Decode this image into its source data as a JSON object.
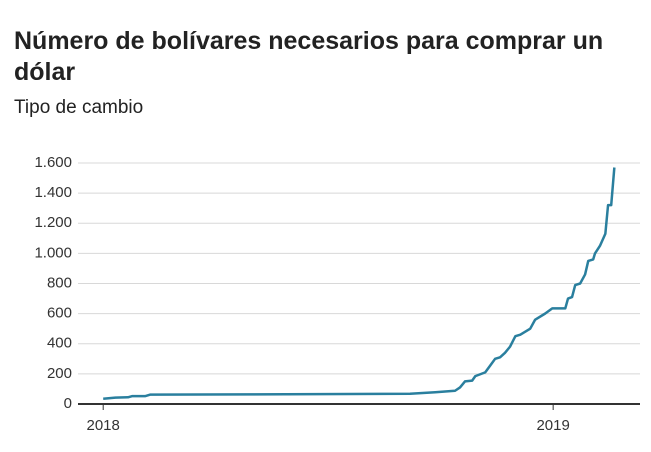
{
  "chart_data": {
    "type": "line",
    "title": "Número de bolívares necesarios para comprar un dólar",
    "subtitle": "Tipo de cambio",
    "x": [
      2018.0,
      2018.027,
      2018.056,
      2018.064,
      2018.093,
      2018.104,
      2018.327,
      2018.549,
      2018.682,
      2018.738,
      2018.782,
      2018.793,
      2018.804,
      2018.82,
      2018.827,
      2018.849,
      2018.86,
      2018.871,
      2018.882,
      2018.893,
      2018.904,
      2018.916,
      2018.927,
      2018.949,
      2018.96,
      2018.982,
      2018.998,
      2019.027,
      2019.033,
      2019.042,
      2019.049,
      2019.06,
      2019.071,
      2019.078,
      2019.089,
      2019.093,
      2019.104,
      2019.116,
      2019.122,
      2019.129,
      2019.136
    ],
    "series": [
      {
        "name": "Tipo de cambio",
        "color": "#2a7f9e",
        "values": [
          35,
          42,
          45,
          52,
          52,
          62,
          64,
          66,
          68,
          78,
          88,
          110,
          150,
          155,
          185,
          210,
          255,
          300,
          310,
          340,
          380,
          450,
          460,
          500,
          560,
          600,
          635,
          635,
          700,
          710,
          790,
          800,
          860,
          950,
          960,
          1000,
          1050,
          1130,
          1320,
          1320,
          1570
        ]
      }
    ],
    "xlim": [
      2017.944,
      2019.193
    ],
    "xticks": [
      2018,
      2019
    ],
    "ylim": [
      0,
      1600
    ],
    "yticks": [
      0,
      200,
      400,
      600,
      800,
      {
        "value": 1000,
        "label": "1.000"
      },
      {
        "value": 1200,
        "label": "1.200"
      },
      {
        "value": 1400,
        "label": "1.400"
      },
      {
        "value": 1600,
        "label": "1.600"
      }
    ],
    "grid": true
  }
}
